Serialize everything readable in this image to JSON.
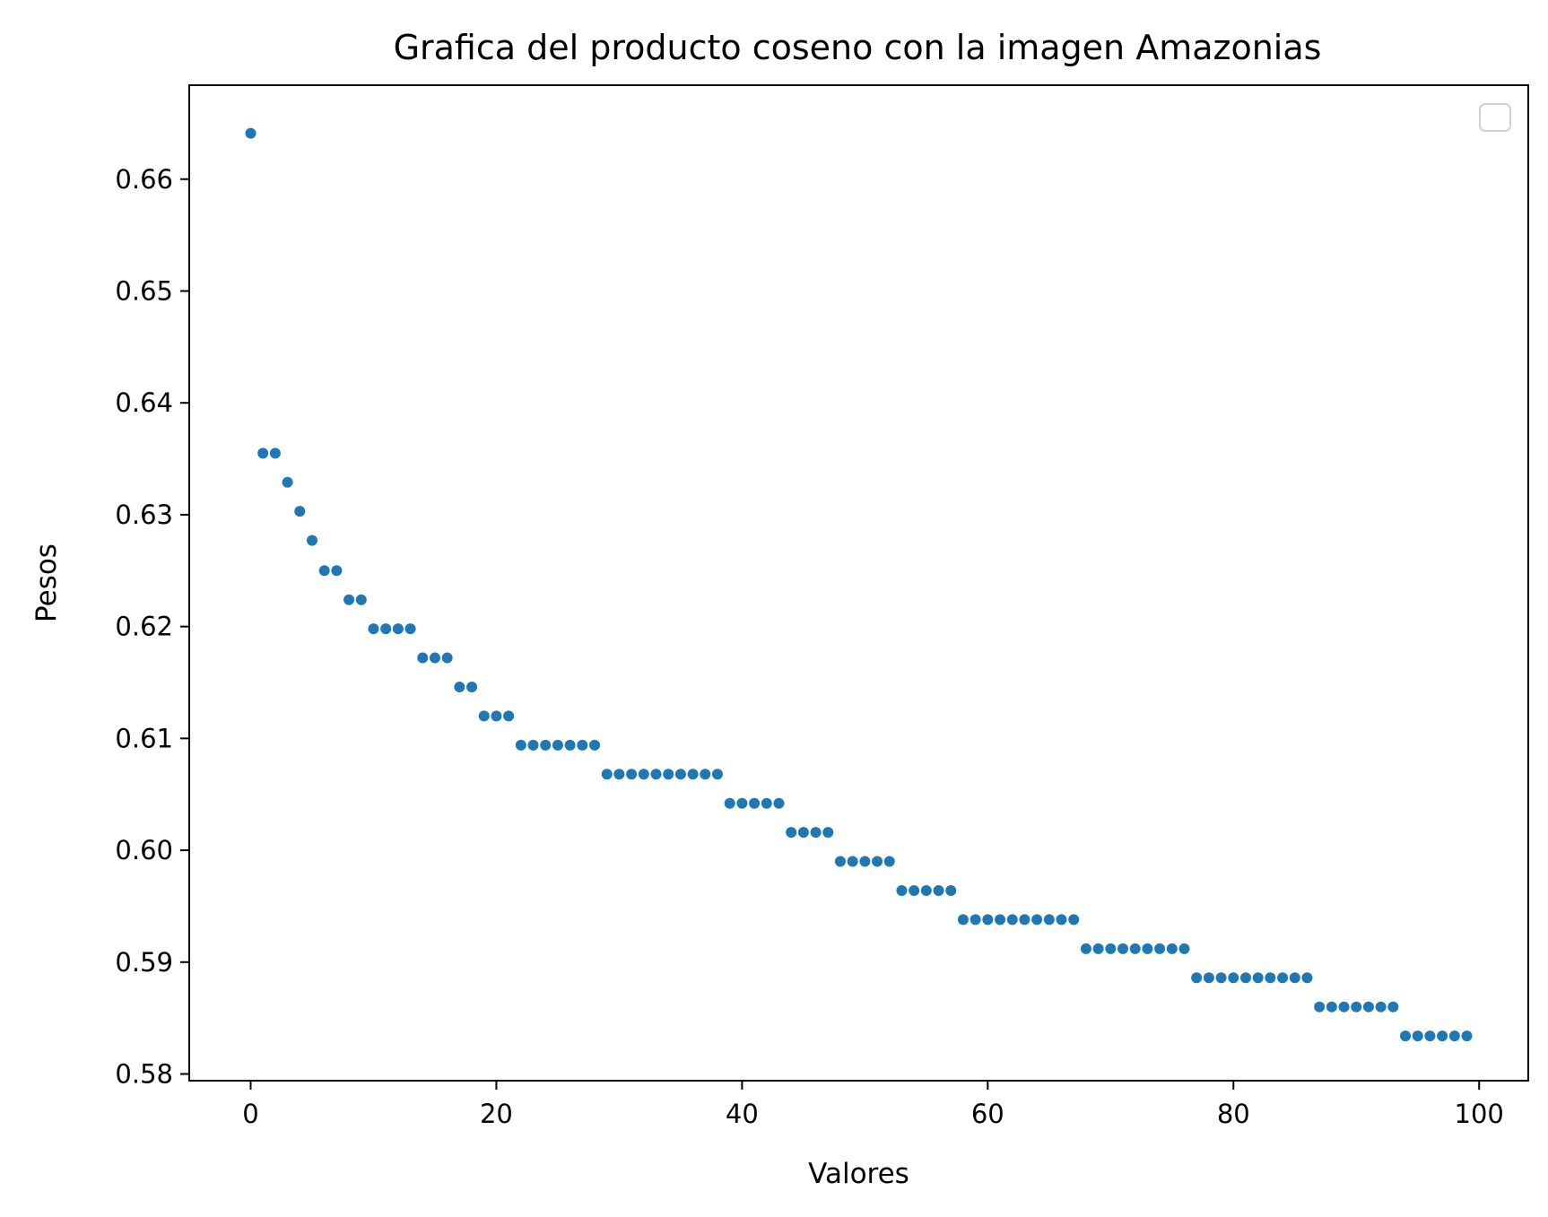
{
  "chart_data": {
    "type": "scatter",
    "title": "Grafica del producto coseno con la imagen Amazonias",
    "xlabel": "Valores",
    "ylabel": "Pesos",
    "xlim": [
      -5,
      104
    ],
    "ylim": [
      0.5794,
      0.6684
    ],
    "xticks": [
      0,
      20,
      40,
      60,
      80,
      100
    ],
    "xtick_labels": [
      "0",
      "20",
      "40",
      "60",
      "80",
      "100"
    ],
    "yticks": [
      0.58,
      0.59,
      0.6,
      0.61,
      0.62,
      0.63,
      0.64,
      0.65,
      0.66
    ],
    "ytick_labels": [
      "0.58",
      "0.59",
      "0.60",
      "0.61",
      "0.62",
      "0.63",
      "0.64",
      "0.65",
      "0.66"
    ],
    "grid": false,
    "legend": "top-right, empty",
    "color": "#1f77b4",
    "series": [
      {
        "x": [
          0,
          1,
          2,
          3,
          4,
          5,
          6,
          7,
          8,
          9,
          10,
          11,
          12,
          13,
          14,
          15,
          16,
          17,
          18,
          19,
          20,
          21,
          22,
          23,
          24,
          25,
          26,
          27,
          28,
          29,
          30,
          31,
          32,
          33,
          34,
          35,
          36,
          37,
          38,
          39,
          40,
          41,
          42,
          43,
          44,
          45,
          46,
          47,
          48,
          49,
          50,
          51,
          52,
          53,
          54,
          55,
          56,
          57,
          58,
          59,
          60,
          61,
          62,
          63,
          64,
          65,
          66,
          67,
          68,
          69,
          70,
          71,
          72,
          73,
          74,
          75,
          76,
          77,
          78,
          79,
          80,
          81,
          82,
          83,
          84,
          85,
          86,
          87,
          88,
          89,
          90,
          91,
          92,
          93,
          94,
          95,
          96,
          97,
          98,
          99
        ],
        "y": [
          0.6641,
          0.6355,
          0.6355,
          0.6329,
          0.6303,
          0.6277,
          0.625,
          0.625,
          0.6224,
          0.6224,
          0.6198,
          0.6198,
          0.6198,
          0.6198,
          0.6172,
          0.6172,
          0.6172,
          0.6146,
          0.6146,
          0.612,
          0.612,
          0.612,
          0.6094,
          0.6094,
          0.6094,
          0.6094,
          0.6094,
          0.6094,
          0.6094,
          0.6068,
          0.6068,
          0.6068,
          0.6068,
          0.6068,
          0.6068,
          0.6068,
          0.6068,
          0.6068,
          0.6068,
          0.6042,
          0.6042,
          0.6042,
          0.6042,
          0.6042,
          0.6016,
          0.6016,
          0.6016,
          0.6016,
          0.599,
          0.599,
          0.599,
          0.599,
          0.599,
          0.5964,
          0.5964,
          0.5964,
          0.5964,
          0.5964,
          0.5938,
          0.5938,
          0.5938,
          0.5938,
          0.5938,
          0.5938,
          0.5938,
          0.5938,
          0.5938,
          0.5938,
          0.5912,
          0.5912,
          0.5912,
          0.5912,
          0.5912,
          0.5912,
          0.5912,
          0.5912,
          0.5912,
          0.5886,
          0.5886,
          0.5886,
          0.5886,
          0.5886,
          0.5886,
          0.5886,
          0.5886,
          0.5886,
          0.5886,
          0.586,
          0.586,
          0.586,
          0.586,
          0.586,
          0.586,
          0.586,
          0.5834,
          0.5834,
          0.5834,
          0.5834,
          0.5834,
          0.5834
        ]
      }
    ]
  }
}
